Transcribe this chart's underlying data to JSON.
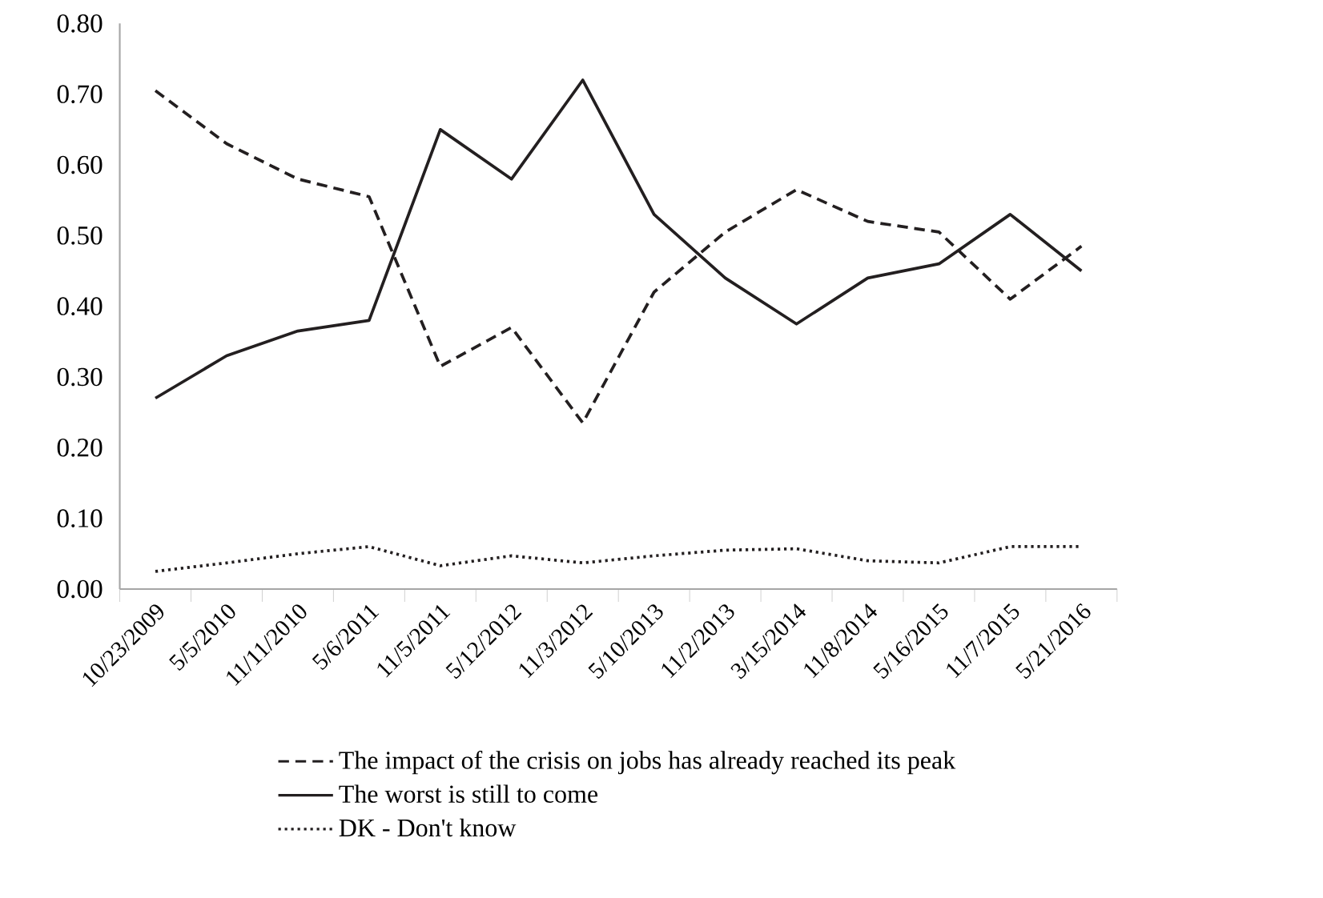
{
  "chart_data": {
    "type": "line",
    "categories": [
      "10/23/2009",
      "5/5/2010",
      "11/11/2010",
      "5/6/2011",
      "11/5/2011",
      "5/12/2012",
      "11/3/2012",
      "5/10/2013",
      "11/2/2013",
      "3/15/2014",
      "11/8/2014",
      "5/16/2015",
      "11/7/2015",
      "5/21/2016"
    ],
    "series": [
      {
        "name": "The impact of the crisis on jobs has already reached its peak",
        "color": "#231f20",
        "line_style": "dashed",
        "values": [
          0.705,
          0.63,
          0.58,
          0.555,
          0.315,
          0.37,
          0.235,
          0.42,
          0.505,
          0.565,
          0.52,
          0.505,
          0.41,
          0.485
        ]
      },
      {
        "name": "The worst is still to come",
        "color": "#231f20",
        "line_style": "solid",
        "values": [
          0.27,
          0.33,
          0.365,
          0.38,
          0.65,
          0.58,
          0.72,
          0.53,
          0.44,
          0.375,
          0.44,
          0.46,
          0.53,
          0.45
        ]
      },
      {
        "name": "DK - Don't know",
        "color": "#231f20",
        "line_style": "dotted",
        "values": [
          0.025,
          0.037,
          0.05,
          0.06,
          0.033,
          0.047,
          0.037,
          0.047,
          0.055,
          0.057,
          0.04,
          0.037,
          0.06,
          0.06
        ]
      }
    ],
    "ylim": [
      0,
      0.8
    ],
    "yticks": [
      {
        "value": 0,
        "label": "0.00"
      },
      {
        "value": 0.1,
        "label": "0.10"
      },
      {
        "value": 0.2,
        "label": "0.20"
      },
      {
        "value": 0.3,
        "label": "0.30"
      },
      {
        "value": 0.4,
        "label": "0.40"
      },
      {
        "value": 0.5,
        "label": "0.50"
      },
      {
        "value": 0.6,
        "label": "0.60"
      },
      {
        "value": 0.7,
        "label": "0.70"
      },
      {
        "value": 0.8,
        "label": "0.80"
      }
    ],
    "grid": false,
    "legend": "bottom",
    "marker": "none"
  }
}
